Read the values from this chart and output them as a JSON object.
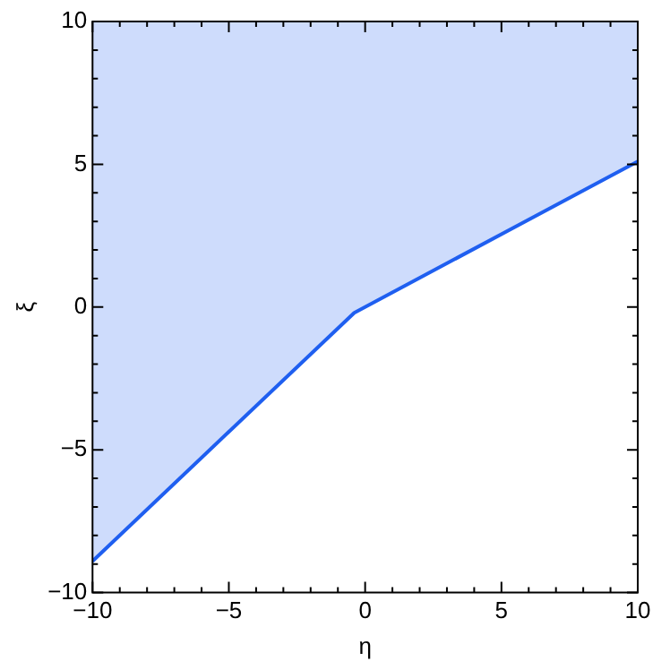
{
  "chart_data": {
    "type": "line",
    "xlabel": "η",
    "ylabel": "ξ",
    "x": [
      -10,
      -0.4,
      10
    ],
    "series": [
      {
        "color": "#1f5ff0",
        "values": [
          -8.9,
          -0.2,
          5.1
        ],
        "lower": [
          -8.9,
          -0.2,
          5.1
        ],
        "upper": [
          10,
          10,
          10
        ]
      }
    ],
    "xlim": [
      -10,
      10
    ],
    "ylim": [
      -10,
      10
    ],
    "xticks": [
      -10,
      {
        "value": -9,
        "label": null
      },
      {
        "value": -8,
        "label": null
      },
      {
        "value": -7,
        "label": null
      },
      {
        "value": -6,
        "label": null
      },
      -5,
      {
        "value": -4,
        "label": null
      },
      {
        "value": -3,
        "label": null
      },
      {
        "value": -2,
        "label": null
      },
      {
        "value": -1,
        "label": null
      },
      0,
      {
        "value": 1,
        "label": null
      },
      {
        "value": 2,
        "label": null
      },
      {
        "value": 3,
        "label": null
      },
      {
        "value": 4,
        "label": null
      },
      5,
      {
        "value": 6,
        "label": null
      },
      {
        "value": 7,
        "label": null
      },
      {
        "value": 8,
        "label": null
      },
      {
        "value": 9,
        "label": null
      },
      10
    ],
    "yticks": [
      -10,
      {
        "value": -9,
        "label": null
      },
      {
        "value": -8,
        "label": null
      },
      {
        "value": -7,
        "label": null
      },
      {
        "value": -6,
        "label": null
      },
      -5,
      {
        "value": -4,
        "label": null
      },
      {
        "value": -3,
        "label": null
      },
      {
        "value": -2,
        "label": null
      },
      {
        "value": -1,
        "label": null
      },
      0,
      {
        "value": 1,
        "label": null
      },
      {
        "value": 2,
        "label": null
      },
      {
        "value": 3,
        "label": null
      },
      {
        "value": 4,
        "label": null
      },
      5,
      {
        "value": 6,
        "label": null
      },
      {
        "value": 7,
        "label": null
      },
      {
        "value": 8,
        "label": null
      },
      {
        "value": 9,
        "label": null
      },
      10
    ],
    "grid": false,
    "legend": false,
    "marker": "none",
    "line_style": "solid"
  }
}
